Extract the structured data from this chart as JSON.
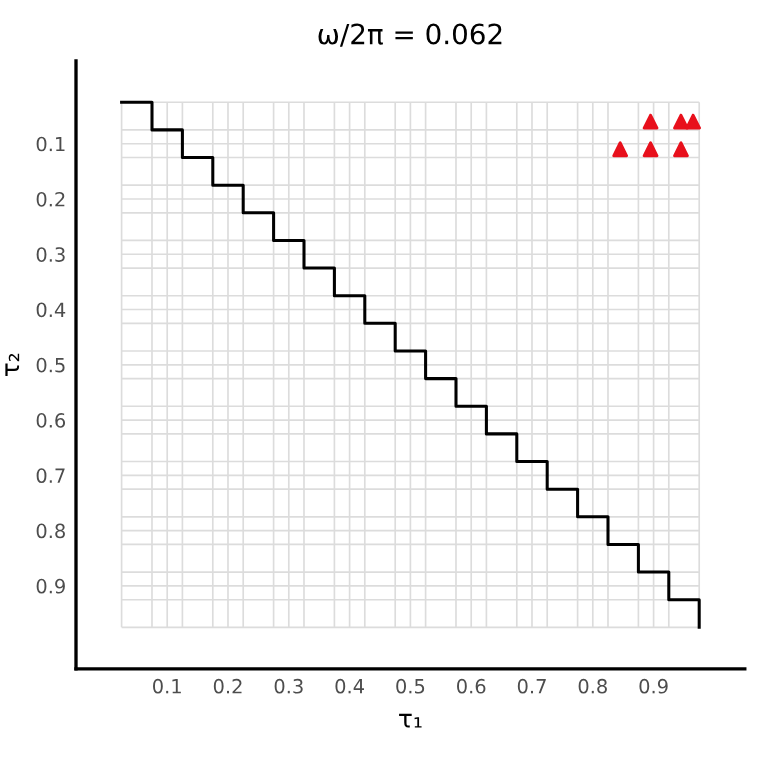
{
  "chart_data": {
    "type": "step",
    "title": "ω/2π = 0.062",
    "xlabel": "τ₁",
    "ylabel": "τ₂",
    "xlim": [
      -0.05,
      1.05
    ],
    "ylim": [
      1.05,
      -0.05
    ],
    "xticks": [
      {
        "value": 0.025,
        "label": null
      },
      {
        "value": 0.075,
        "label": null
      },
      0.1,
      {
        "value": 0.125,
        "label": null
      },
      {
        "value": 0.175,
        "label": null
      },
      0.2,
      {
        "value": 0.225,
        "label": null
      },
      {
        "value": 0.275,
        "label": null
      },
      0.3,
      {
        "value": 0.325,
        "label": null
      },
      {
        "value": 0.375,
        "label": null
      },
      0.4,
      {
        "value": 0.425,
        "label": null
      },
      {
        "value": 0.475,
        "label": null
      },
      0.5,
      {
        "value": 0.525,
        "label": null
      },
      {
        "value": 0.575,
        "label": null
      },
      0.6,
      {
        "value": 0.625,
        "label": null
      },
      {
        "value": 0.675,
        "label": null
      },
      0.7,
      {
        "value": 0.725,
        "label": null
      },
      {
        "value": 0.775,
        "label": null
      },
      0.8,
      {
        "value": 0.825,
        "label": null
      },
      {
        "value": 0.875,
        "label": null
      },
      0.9,
      {
        "value": 0.925,
        "label": null
      },
      {
        "value": 0.975,
        "label": null
      }
    ],
    "yticks": [
      {
        "value": 0.025,
        "label": null
      },
      {
        "value": 0.075,
        "label": null
      },
      0.1,
      {
        "value": 0.125,
        "label": null
      },
      {
        "value": 0.175,
        "label": null
      },
      0.2,
      {
        "value": 0.225,
        "label": null
      },
      {
        "value": 0.275,
        "label": null
      },
      0.3,
      {
        "value": 0.325,
        "label": null
      },
      {
        "value": 0.375,
        "label": null
      },
      0.4,
      {
        "value": 0.425,
        "label": null
      },
      {
        "value": 0.475,
        "label": null
      },
      0.5,
      {
        "value": 0.525,
        "label": null
      },
      {
        "value": 0.575,
        "label": null
      },
      0.6,
      {
        "value": 0.625,
        "label": null
      },
      {
        "value": 0.675,
        "label": null
      },
      0.7,
      {
        "value": 0.725,
        "label": null
      },
      {
        "value": 0.775,
        "label": null
      },
      0.8,
      {
        "value": 0.825,
        "label": null
      },
      {
        "value": 0.875,
        "label": null
      },
      0.9,
      {
        "value": 0.925,
        "label": null
      },
      {
        "value": 0.975,
        "label": null
      }
    ],
    "grid": true,
    "series": [
      {
        "color": "#000000",
        "x": [
          0.025,
          0.075,
          0.125,
          0.175,
          0.225,
          0.275,
          0.325,
          0.375,
          0.425,
          0.475,
          0.525,
          0.575,
          0.625,
          0.675,
          0.725,
          0.775,
          0.825,
          0.875,
          0.925,
          0.975
        ],
        "values": [
          0.025,
          0.075,
          0.125,
          0.175,
          0.225,
          0.275,
          0.325,
          0.375,
          0.425,
          0.475,
          0.525,
          0.575,
          0.625,
          0.675,
          0.725,
          0.775,
          0.825,
          0.875,
          0.925,
          0.975
        ]
      },
      {
        "type": "scatter",
        "color": "#e8101c",
        "marker": "triangle",
        "x": [
          0.895,
          0.945,
          0.965,
          0.845,
          0.895,
          0.945
        ],
        "values": [
          0.06,
          0.06,
          0.06,
          0.11,
          0.11,
          0.11
        ]
      }
    ]
  }
}
